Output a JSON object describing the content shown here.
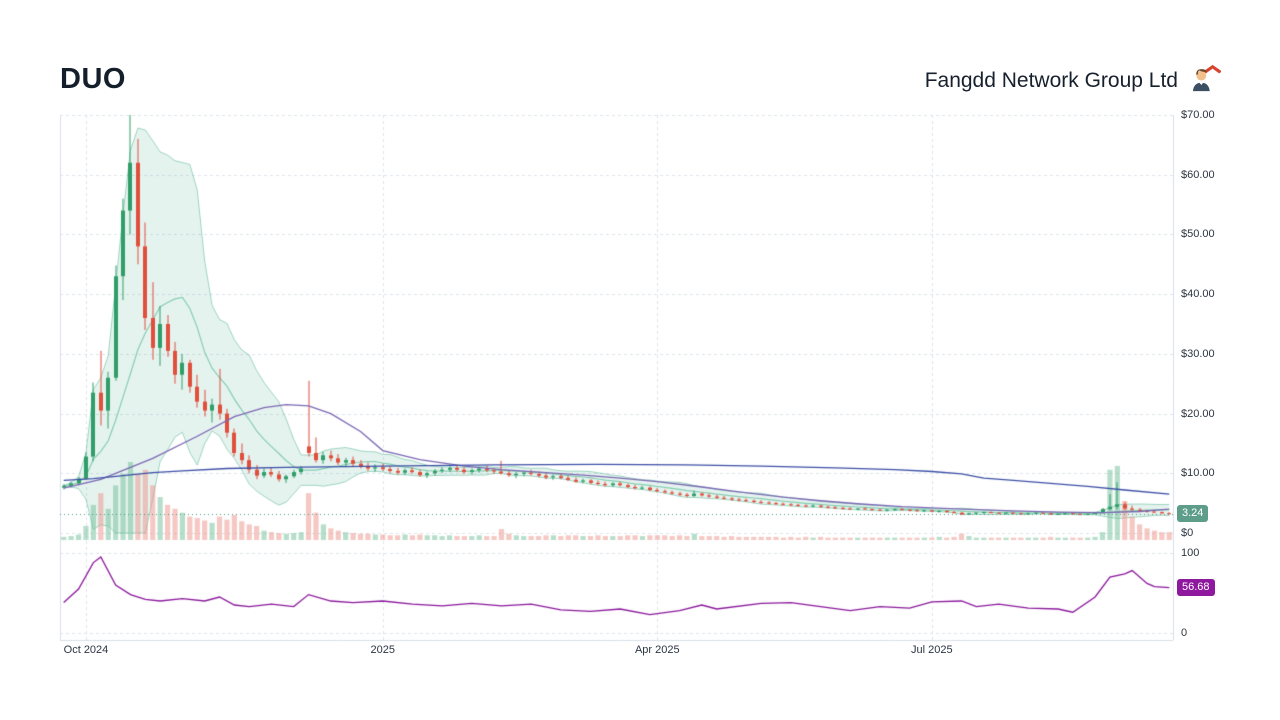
{
  "header": {
    "symbol": "DUO",
    "company": "Fangdd Network Group Ltd",
    "icon": "realtor-with-red-roof"
  },
  "price_panel": {
    "axis_labels": [
      "$70.00",
      "$60.00",
      "$50.00",
      "$40.00",
      "$30.00",
      "$20.00",
      "$10.00",
      "$0"
    ],
    "axis_values": [
      70,
      60,
      50,
      40,
      30,
      20,
      10,
      0
    ],
    "last_price": "3.24",
    "last_price_value": 3.24
  },
  "indicator_panel": {
    "axis_labels": [
      "100",
      "0"
    ],
    "axis_values": [
      100,
      0
    ],
    "last_value": "56.68",
    "last_value_number": 56.68
  },
  "x_axis": {
    "ticks": [
      {
        "label": "Oct 2024",
        "index": 3
      },
      {
        "label": "2025",
        "index": 43
      },
      {
        "label": "Apr 2025",
        "index": 80
      },
      {
        "label": "Jul 2025",
        "index": 117
      }
    ]
  },
  "chart_data": {
    "type": "candlestick",
    "title": "DUO - Fangdd Network Group Ltd",
    "price_ylim": [
      0,
      70
    ],
    "indicator_ylim": [
      0,
      100
    ],
    "x_range": [
      "Sep 2024",
      "Oct 2025"
    ],
    "grid": true,
    "legend": "none",
    "candles_ohlcv": [
      [
        7.6,
        8.2,
        7.3,
        7.9,
        4
      ],
      [
        7.9,
        8.6,
        7.6,
        8.3,
        5
      ],
      [
        8.3,
        9.4,
        8.0,
        9.1,
        7
      ],
      [
        9.1,
        13.5,
        8.9,
        12.8,
        18
      ],
      [
        12.8,
        25.2,
        12.0,
        23.5,
        45
      ],
      [
        23.5,
        30.5,
        18.0,
        20.5,
        60
      ],
      [
        20.5,
        27.0,
        17.5,
        26.0,
        40
      ],
      [
        26.0,
        44.8,
        25.5,
        43.0,
        70
      ],
      [
        43.0,
        56.0,
        39.0,
        54.0,
        85
      ],
      [
        54.0,
        70.0,
        50.0,
        62.0,
        100
      ],
      [
        62.0,
        66.0,
        45.0,
        48.0,
        85
      ],
      [
        48.0,
        52.0,
        34.0,
        36.0,
        90
      ],
      [
        36.0,
        42.0,
        29.0,
        31.0,
        70
      ],
      [
        31.0,
        38.0,
        28.0,
        35.0,
        55
      ],
      [
        35.0,
        36.5,
        29.5,
        30.5,
        45
      ],
      [
        30.5,
        32.0,
        25.0,
        26.5,
        40
      ],
      [
        26.5,
        30.0,
        24.0,
        28.5,
        35
      ],
      [
        28.5,
        29.0,
        23.5,
        24.5,
        30
      ],
      [
        24.5,
        26.5,
        21.0,
        22.0,
        28
      ],
      [
        22.0,
        24.0,
        19.5,
        20.5,
        25
      ],
      [
        20.5,
        22.5,
        18.5,
        21.5,
        22
      ],
      [
        21.5,
        27.5,
        19.0,
        20.0,
        30
      ],
      [
        20.0,
        20.8,
        16.0,
        16.8,
        26
      ],
      [
        16.8,
        17.5,
        12.8,
        13.4,
        32
      ],
      [
        13.4,
        15.0,
        11.5,
        12.2,
        24
      ],
      [
        12.2,
        13.0,
        10.0,
        10.6,
        20
      ],
      [
        10.6,
        11.4,
        9.0,
        9.6,
        18
      ],
      [
        9.6,
        10.8,
        9.2,
        10.2,
        12
      ],
      [
        10.2,
        11.0,
        9.4,
        9.8,
        10
      ],
      [
        9.8,
        10.4,
        8.6,
        9.0,
        9
      ],
      [
        9.0,
        9.8,
        8.4,
        9.5,
        8
      ],
      [
        9.5,
        10.6,
        9.2,
        10.2,
        9
      ],
      [
        10.2,
        11.2,
        9.8,
        10.8,
        10
      ],
      [
        14.5,
        25.5,
        12.8,
        13.4,
        60
      ],
      [
        13.4,
        16.0,
        11.8,
        12.2,
        35
      ],
      [
        12.2,
        13.6,
        11.6,
        13.0,
        20
      ],
      [
        13.0,
        13.8,
        12.0,
        12.5,
        15
      ],
      [
        12.5,
        13.2,
        11.4,
        11.8,
        12
      ],
      [
        11.8,
        12.6,
        11.0,
        12.2,
        10
      ],
      [
        12.2,
        12.8,
        11.2,
        11.6,
        9
      ],
      [
        11.6,
        12.2,
        10.8,
        11.2,
        8
      ],
      [
        11.2,
        11.8,
        10.4,
        10.8,
        8
      ],
      [
        10.8,
        11.5,
        10.2,
        11.0,
        7
      ],
      [
        11.0,
        11.6,
        10.4,
        10.7,
        7
      ],
      [
        10.7,
        11.2,
        10.0,
        10.4,
        6
      ],
      [
        10.4,
        10.9,
        9.8,
        10.1,
        6
      ],
      [
        10.1,
        10.8,
        9.7,
        10.5,
        7
      ],
      [
        10.5,
        11.0,
        9.9,
        10.2,
        6
      ],
      [
        10.2,
        10.6,
        9.4,
        9.7,
        7
      ],
      [
        9.7,
        10.3,
        9.2,
        10.0,
        6
      ],
      [
        10.0,
        10.7,
        9.6,
        10.4,
        6
      ],
      [
        10.4,
        11.0,
        10.0,
        10.6,
        5
      ],
      [
        10.6,
        11.2,
        10.2,
        10.9,
        6
      ],
      [
        10.9,
        11.4,
        10.3,
        10.6,
        5
      ],
      [
        10.6,
        11.0,
        9.9,
        10.2,
        5
      ],
      [
        10.2,
        10.8,
        9.8,
        10.5,
        5
      ],
      [
        10.5,
        11.1,
        10.1,
        10.8,
        6
      ],
      [
        10.8,
        11.3,
        10.2,
        10.5,
        5
      ],
      [
        10.5,
        10.9,
        9.9,
        10.3,
        5
      ],
      [
        10.3,
        12.1,
        9.8,
        10.0,
        14
      ],
      [
        10.0,
        10.5,
        9.4,
        9.7,
        8
      ],
      [
        9.7,
        10.2,
        9.2,
        9.9,
        6
      ],
      [
        9.9,
        10.4,
        9.5,
        10.1,
        5
      ],
      [
        10.1,
        10.6,
        9.6,
        9.9,
        5
      ],
      [
        9.9,
        10.3,
        9.3,
        9.6,
        5
      ],
      [
        9.6,
        10.0,
        9.0,
        9.3,
        6
      ],
      [
        9.3,
        9.8,
        8.9,
        9.5,
        6
      ],
      [
        9.5,
        9.9,
        9.0,
        9.2,
        5
      ],
      [
        9.2,
        9.6,
        8.7,
        8.9,
        6
      ],
      [
        8.9,
        9.3,
        8.4,
        8.6,
        6
      ],
      [
        8.6,
        9.1,
        8.3,
        8.8,
        5
      ],
      [
        8.8,
        9.0,
        8.2,
        8.4,
        5
      ],
      [
        8.4,
        8.8,
        8.0,
        8.2,
        6
      ],
      [
        8.2,
        8.6,
        7.8,
        8.0,
        5
      ],
      [
        8.0,
        8.5,
        7.7,
        8.3,
        5
      ],
      [
        8.3,
        8.6,
        7.8,
        8.0,
        5
      ],
      [
        8.0,
        8.3,
        7.5,
        7.7,
        6
      ],
      [
        7.7,
        8.1,
        7.3,
        7.5,
        6
      ],
      [
        7.5,
        7.9,
        7.2,
        7.6,
        5
      ],
      [
        7.6,
        7.8,
        7.0,
        7.2,
        6
      ],
      [
        7.2,
        7.5,
        6.8,
        7.0,
        6
      ],
      [
        7.0,
        7.3,
        6.6,
        6.8,
        6
      ],
      [
        6.8,
        7.1,
        6.4,
        6.6,
        5
      ],
      [
        6.6,
        6.9,
        6.2,
        6.4,
        6
      ],
      [
        6.4,
        6.7,
        6.0,
        6.2,
        5
      ],
      [
        6.2,
        7.1,
        6.0,
        6.6,
        8
      ],
      [
        6.6,
        6.8,
        6.1,
        6.3,
        5
      ],
      [
        6.3,
        6.6,
        5.9,
        6.1,
        5
      ],
      [
        6.1,
        6.4,
        5.7,
        5.9,
        5
      ],
      [
        5.9,
        6.2,
        5.6,
        5.8,
        4
      ],
      [
        5.8,
        6.0,
        5.4,
        5.6,
        5
      ],
      [
        5.6,
        5.9,
        5.3,
        5.5,
        4
      ],
      [
        5.5,
        5.8,
        5.2,
        5.4,
        4
      ],
      [
        5.4,
        5.6,
        5.0,
        5.2,
        4
      ],
      [
        5.2,
        5.5,
        4.9,
        5.1,
        4
      ],
      [
        5.1,
        5.3,
        4.8,
        5.0,
        4
      ],
      [
        5.0,
        5.2,
        4.7,
        4.9,
        4
      ],
      [
        4.9,
        5.1,
        4.6,
        4.8,
        3
      ],
      [
        4.8,
        5.0,
        4.5,
        4.7,
        4
      ],
      [
        4.7,
        4.9,
        4.4,
        4.6,
        3
      ],
      [
        4.6,
        4.8,
        4.3,
        4.5,
        4
      ],
      [
        4.5,
        4.8,
        4.3,
        4.6,
        3
      ],
      [
        4.6,
        4.7,
        4.2,
        4.4,
        4
      ],
      [
        4.4,
        4.6,
        4.1,
        4.3,
        3
      ],
      [
        4.3,
        4.5,
        4.0,
        4.2,
        3
      ],
      [
        4.2,
        4.4,
        3.9,
        4.1,
        3
      ],
      [
        4.1,
        4.3,
        3.9,
        4.0,
        3
      ],
      [
        4.0,
        4.2,
        3.8,
        4.1,
        3
      ],
      [
        4.1,
        4.3,
        3.9,
        4.0,
        3
      ],
      [
        4.0,
        4.1,
        3.7,
        3.9,
        3
      ],
      [
        3.9,
        4.1,
        3.7,
        3.8,
        3
      ],
      [
        3.8,
        4.0,
        3.6,
        3.9,
        3
      ],
      [
        3.9,
        4.1,
        3.7,
        4.0,
        3
      ],
      [
        4.0,
        4.2,
        3.8,
        3.9,
        3
      ],
      [
        3.9,
        4.0,
        3.6,
        3.8,
        3
      ],
      [
        3.8,
        4.0,
        3.6,
        3.7,
        3
      ],
      [
        3.7,
        3.9,
        3.5,
        3.8,
        3
      ],
      [
        3.8,
        3.9,
        3.5,
        3.6,
        3
      ],
      [
        3.6,
        3.8,
        3.4,
        3.7,
        4
      ],
      [
        3.7,
        3.8,
        3.4,
        3.5,
        3
      ],
      [
        3.5,
        3.7,
        3.3,
        3.4,
        4
      ],
      [
        3.4,
        3.5,
        3.0,
        3.1,
        8
      ],
      [
        3.1,
        3.4,
        3.0,
        3.3,
        5
      ],
      [
        3.3,
        3.5,
        3.2,
        3.4,
        3
      ],
      [
        3.4,
        3.6,
        3.2,
        3.5,
        3
      ],
      [
        3.5,
        3.6,
        3.3,
        3.4,
        3
      ],
      [
        3.4,
        3.5,
        3.2,
        3.3,
        3
      ],
      [
        3.3,
        3.5,
        3.1,
        3.4,
        3
      ],
      [
        3.4,
        3.5,
        3.2,
        3.3,
        3
      ],
      [
        3.3,
        3.4,
        3.1,
        3.2,
        3
      ],
      [
        3.2,
        3.4,
        3.1,
        3.3,
        3
      ],
      [
        3.3,
        3.5,
        3.2,
        3.4,
        3
      ],
      [
        3.4,
        3.5,
        3.2,
        3.3,
        3
      ],
      [
        3.3,
        3.4,
        3.0,
        3.1,
        4
      ],
      [
        3.1,
        3.3,
        3.0,
        3.2,
        3
      ],
      [
        3.2,
        3.4,
        3.1,
        3.3,
        3
      ],
      [
        3.3,
        3.4,
        3.1,
        3.2,
        3
      ],
      [
        3.2,
        3.3,
        3.0,
        3.1,
        3
      ],
      [
        3.1,
        3.3,
        3.0,
        3.2,
        3
      ],
      [
        3.2,
        3.5,
        3.1,
        3.4,
        4
      ],
      [
        3.4,
        4.2,
        3.3,
        4.0,
        10
      ],
      [
        4.0,
        6.5,
        3.8,
        4.4,
        90
      ],
      [
        4.4,
        8.5,
        4.0,
        4.8,
        95
      ],
      [
        4.8,
        5.2,
        3.9,
        4.1,
        50
      ],
      [
        4.1,
        4.6,
        3.7,
        3.9,
        30
      ],
      [
        3.9,
        4.2,
        3.5,
        3.7,
        20
      ],
      [
        3.7,
        3.9,
        3.4,
        3.6,
        15
      ],
      [
        3.6,
        3.8,
        3.3,
        3.5,
        12
      ],
      [
        3.5,
        3.6,
        3.2,
        3.3,
        10
      ],
      [
        3.3,
        3.5,
        3.15,
        3.24,
        10
      ]
    ],
    "overlays": {
      "bollinger": {
        "period": 10,
        "stddev_mult": 2
      },
      "mid_ma_anchors": [
        [
          0,
          7.5
        ],
        [
          5,
          9.0
        ],
        [
          12,
          12.5
        ],
        [
          18,
          16.2
        ],
        [
          23,
          19.5
        ],
        [
          27,
          21.0
        ],
        [
          30,
          21.5
        ],
        [
          33,
          21.3
        ],
        [
          36,
          20.0
        ],
        [
          40,
          17.0
        ],
        [
          43,
          13.8
        ],
        [
          48,
          12.3
        ],
        [
          54,
          11.2
        ],
        [
          59,
          10.6
        ],
        [
          64,
          10.2
        ],
        [
          70,
          9.7
        ],
        [
          75,
          9.2
        ],
        [
          80,
          8.6
        ],
        [
          86,
          7.7
        ],
        [
          91,
          6.9
        ],
        [
          97,
          6.0
        ],
        [
          102,
          5.4
        ],
        [
          107,
          4.9
        ],
        [
          113,
          4.4
        ],
        [
          117,
          4.2
        ],
        [
          123,
          3.9
        ],
        [
          128,
          3.7
        ],
        [
          134,
          3.5
        ],
        [
          140,
          3.4
        ],
        [
          145,
          3.6
        ],
        [
          149,
          4.0
        ]
      ],
      "long_ma_anchors": [
        [
          0,
          8.8
        ],
        [
          4,
          9.1
        ],
        [
          8,
          9.6
        ],
        [
          12,
          10.1
        ],
        [
          16,
          10.4
        ],
        [
          22,
          10.8
        ],
        [
          30,
          11.0
        ],
        [
          43,
          11.2
        ],
        [
          58,
          11.4
        ],
        [
          72,
          11.5
        ],
        [
          84,
          11.4
        ],
        [
          94,
          11.2
        ],
        [
          104,
          10.9
        ],
        [
          112,
          10.6
        ],
        [
          117,
          10.3
        ],
        [
          121,
          9.9
        ],
        [
          124,
          9.2
        ],
        [
          128,
          8.8
        ],
        [
          133,
          8.3
        ],
        [
          138,
          7.8
        ],
        [
          143,
          7.2
        ],
        [
          149,
          6.5
        ]
      ]
    },
    "indicator": {
      "name": "oscillator",
      "last": 56.68,
      "anchors": [
        [
          0,
          38
        ],
        [
          2,
          55
        ],
        [
          4,
          88
        ],
        [
          5,
          95
        ],
        [
          7,
          60
        ],
        [
          9,
          48
        ],
        [
          11,
          42
        ],
        [
          13,
          40
        ],
        [
          16,
          43
        ],
        [
          19,
          40
        ],
        [
          21,
          45
        ],
        [
          23,
          35
        ],
        [
          25,
          33
        ],
        [
          28,
          36
        ],
        [
          31,
          33
        ],
        [
          33,
          48
        ],
        [
          36,
          40
        ],
        [
          39,
          38
        ],
        [
          43,
          40
        ],
        [
          47,
          36
        ],
        [
          51,
          34
        ],
        [
          55,
          37
        ],
        [
          59,
          34
        ],
        [
          63,
          36
        ],
        [
          67,
          29
        ],
        [
          71,
          27
        ],
        [
          75,
          30
        ],
        [
          79,
          23
        ],
        [
          83,
          28
        ],
        [
          86,
          35
        ],
        [
          88,
          30
        ],
        [
          94,
          37
        ],
        [
          98,
          38
        ],
        [
          102,
          33
        ],
        [
          106,
          28
        ],
        [
          110,
          33
        ],
        [
          114,
          31
        ],
        [
          117,
          39
        ],
        [
          121,
          40
        ],
        [
          123,
          33
        ],
        [
          126,
          36
        ],
        [
          130,
          31
        ],
        [
          134,
          30
        ],
        [
          136,
          26
        ],
        [
          139,
          45
        ],
        [
          141,
          70
        ],
        [
          143,
          74
        ],
        [
          144,
          78
        ],
        [
          146,
          62
        ],
        [
          147,
          58
        ],
        [
          149,
          56.68
        ]
      ]
    }
  },
  "colors": {
    "up": "#2f9e68",
    "down": "#e04f3c",
    "band_fill": "rgba(54,166,128,0.13)",
    "band_line": "rgba(54,166,128,0.45)",
    "sma_short": "#86cdb2",
    "sma_mid": "#7b68b3",
    "sma_long": "#3c4fa5",
    "vol_up": "rgba(111,190,152,0.5)",
    "vol_down": "rgba(236,146,136,0.5)",
    "indicator": "#8a189b",
    "grid": "#dde5ec",
    "border": "#d8dfe8",
    "axis_text": "#2c3542",
    "price_badge_bg": "#5e9d89",
    "indicator_badge_bg": "#8e189e",
    "dotted_last": "#4f9d86"
  }
}
